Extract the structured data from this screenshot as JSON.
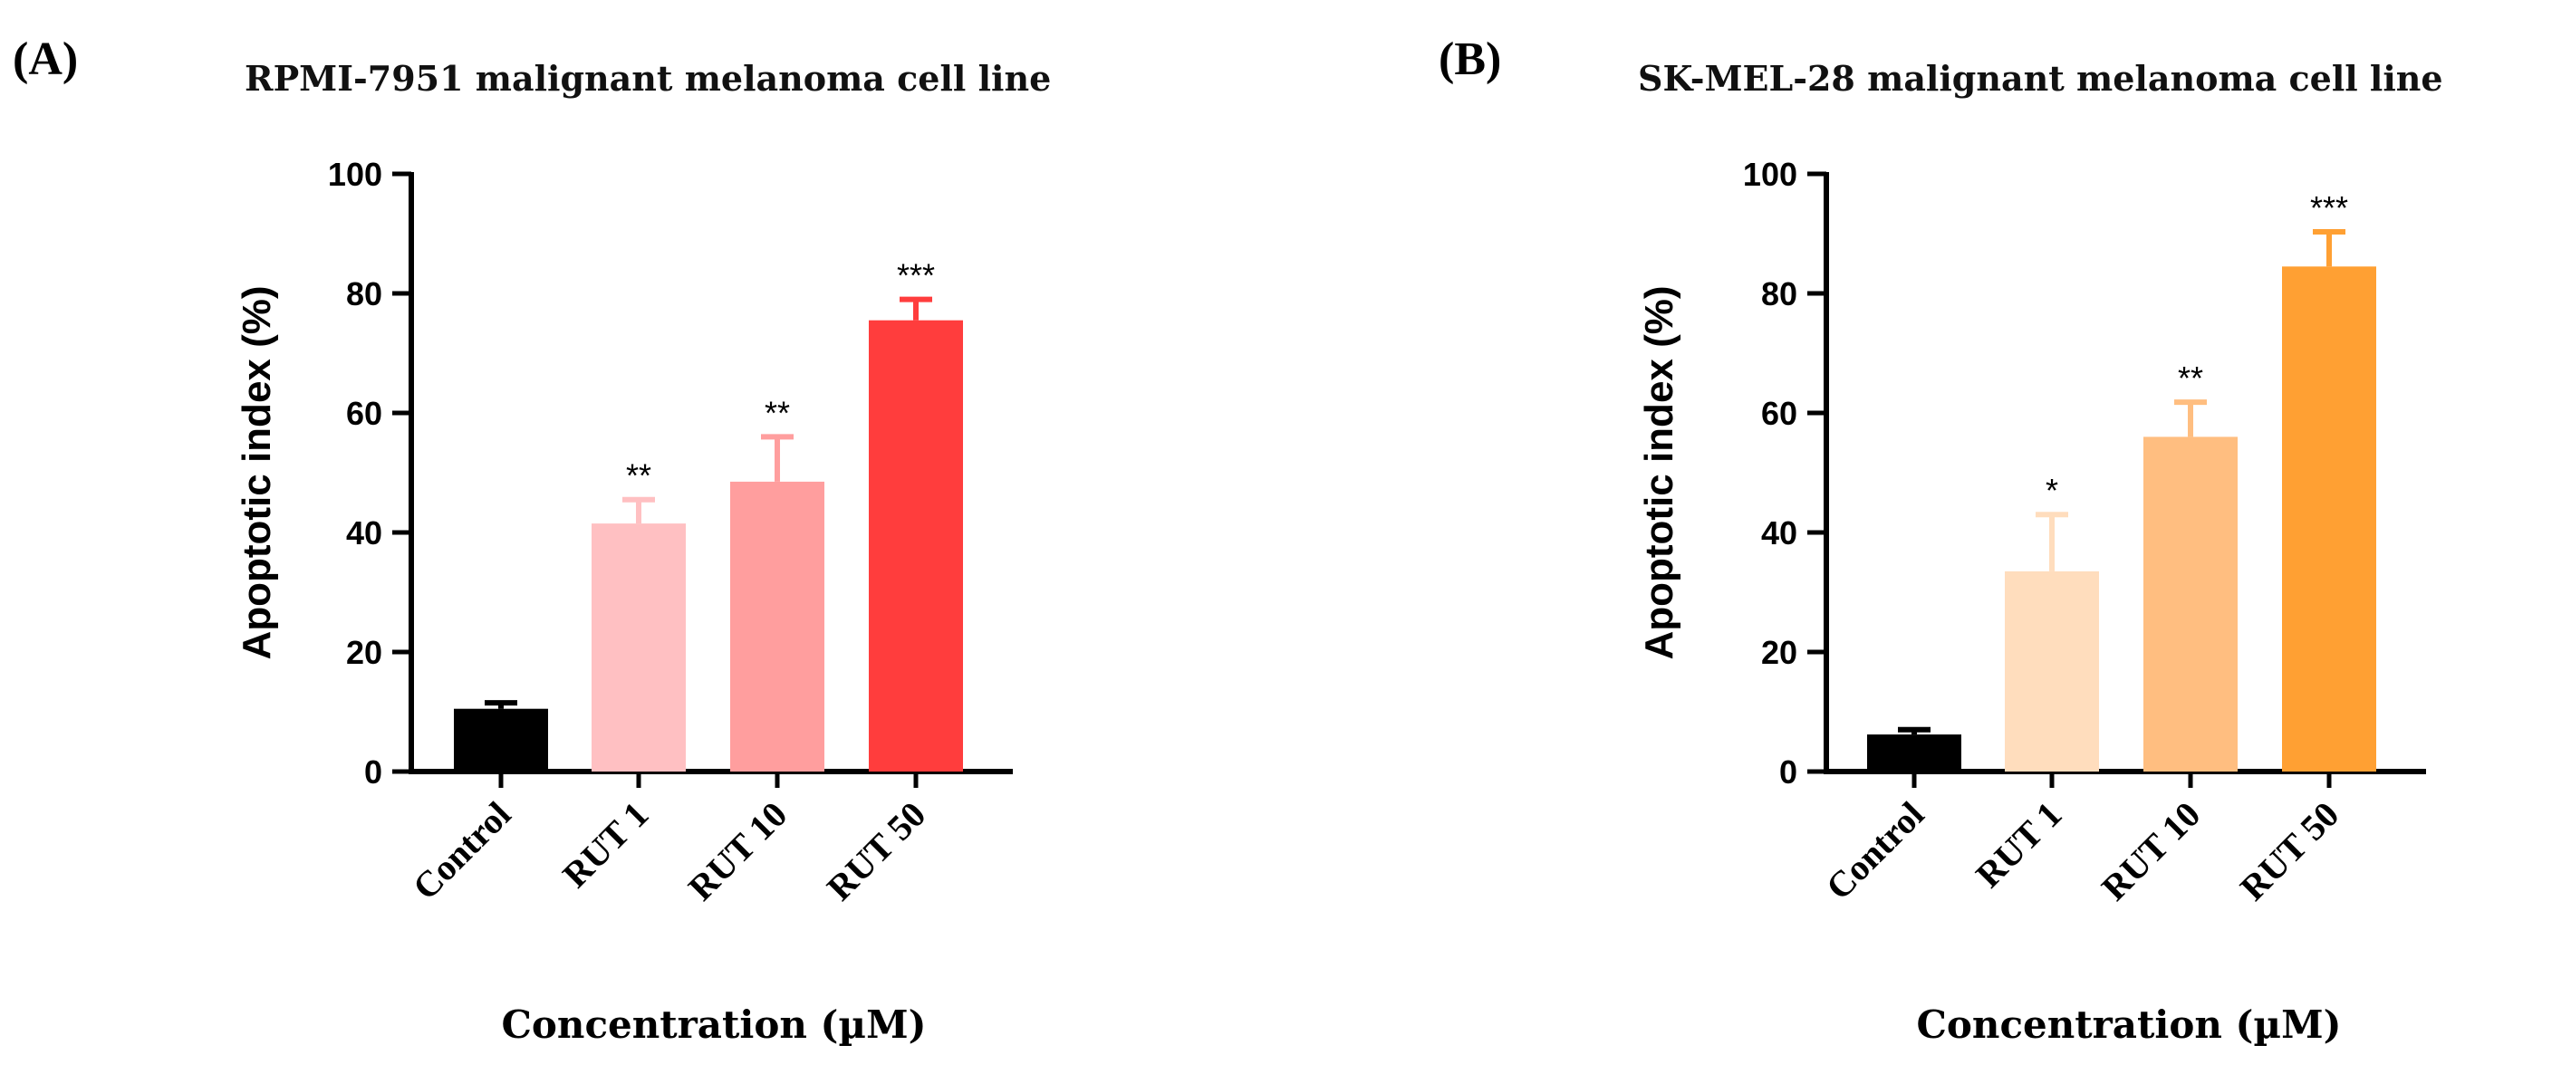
{
  "chart_data": [
    {
      "type": "bar",
      "panel_label": "(A)",
      "title": "RPMI-7951 malignant melanoma cell line",
      "xlabel": "Concentration (µM)",
      "ylabel": "Apoptotic index (%)",
      "ylim": [
        0,
        100
      ],
      "yticks": [
        "0",
        "20",
        "40",
        "60",
        "80",
        "100"
      ],
      "categories": [
        "Control",
        "RUT 1",
        "RUT 10",
        "RUT 50"
      ],
      "values": [
        10.5,
        41.5,
        48.5,
        75.5
      ],
      "errors": [
        1.0,
        4.0,
        7.5,
        3.5
      ],
      "significance": [
        "",
        "**",
        "**",
        "***"
      ],
      "colors": [
        "#000000",
        "#FFC0C2",
        "#FF9E9E",
        "#FF3D3D"
      ],
      "grid": false
    },
    {
      "type": "bar",
      "panel_label": "(B)",
      "title": "SK-MEL-28 malignant melanoma cell line",
      "xlabel": "Concentration (µM)",
      "ylabel": "Apoptotic index (%)",
      "ylim": [
        0,
        100
      ],
      "yticks": [
        "0",
        "20",
        "40",
        "60",
        "80",
        "100"
      ],
      "categories": [
        "Control",
        "RUT 1",
        "RUT 10",
        "RUT 50"
      ],
      "values": [
        6.2,
        33.5,
        56.0,
        84.5
      ],
      "errors": [
        0.8,
        9.5,
        5.8,
        5.8
      ],
      "significance": [
        "",
        "*",
        "**",
        "***"
      ],
      "colors": [
        "#000000",
        "#FFDDBD",
        "#FFBE80",
        "#FFA033"
      ],
      "grid": false
    }
  ]
}
